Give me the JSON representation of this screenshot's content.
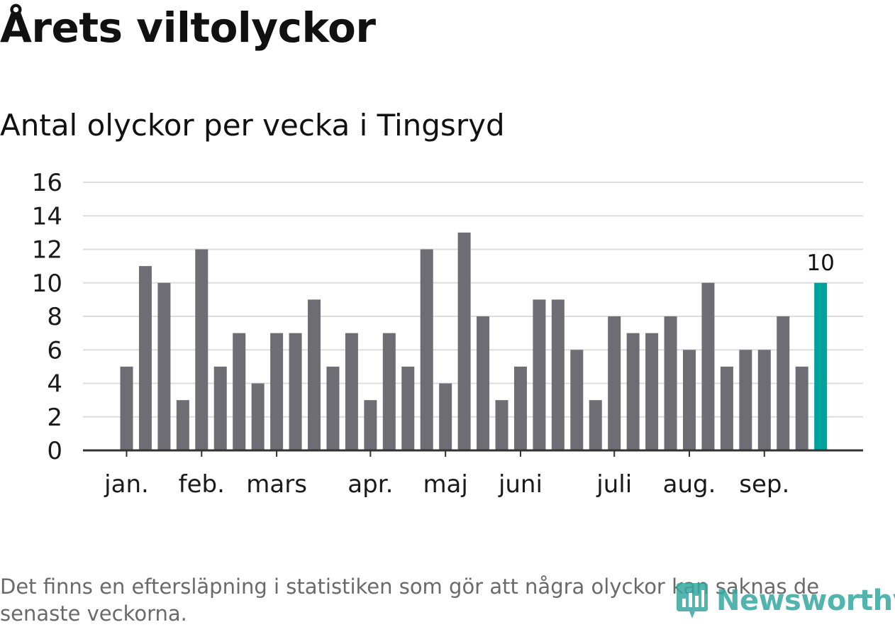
{
  "header": {
    "title": "Årets viltolyckor",
    "subtitle": "Antal olyckor per vecka i Tingsryd"
  },
  "footer": {
    "note": "Det finns en eftersläpning i statistiken som gör att några olyckor kan saknas de senaste veckorna.",
    "logo_text": "Newsworthy"
  },
  "colors": {
    "bar": "#6e6d74",
    "highlight": "#00a39b",
    "grid": "#dddddd",
    "axis": "#333333"
  },
  "chart_data": {
    "type": "bar",
    "title": "Årets viltolyckor",
    "subtitle": "Antal olyckor per vecka i Tingsryd",
    "xlabel": "",
    "ylabel": "",
    "ylim": [
      0,
      16
    ],
    "yticks": [
      0,
      2,
      4,
      6,
      8,
      10,
      12,
      14,
      16
    ],
    "grid": true,
    "values": [
      5,
      11,
      10,
      3,
      12,
      5,
      7,
      4,
      7,
      7,
      9,
      5,
      7,
      3,
      7,
      5,
      12,
      4,
      13,
      8,
      3,
      5,
      9,
      9,
      6,
      3,
      8,
      7,
      7,
      8,
      6,
      10,
      5,
      6,
      6,
      8,
      5,
      10
    ],
    "highlight_index": 37,
    "highlight_label": "10",
    "month_labels": [
      {
        "label": "jan.",
        "week": 0
      },
      {
        "label": "feb.",
        "week": 4
      },
      {
        "label": "mars",
        "week": 8
      },
      {
        "label": "apr.",
        "week": 13
      },
      {
        "label": "maj",
        "week": 17
      },
      {
        "label": "juni",
        "week": 21
      },
      {
        "label": "juli",
        "week": 26
      },
      {
        "label": "aug.",
        "week": 30
      },
      {
        "label": "sep.",
        "week": 34
      }
    ]
  }
}
